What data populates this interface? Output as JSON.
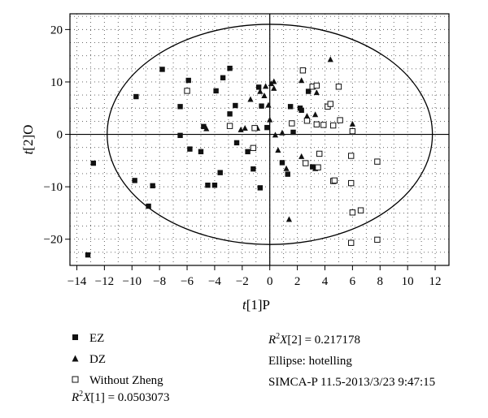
{
  "chart_data": {
    "type": "scatter",
    "xlabel": "t[1]P",
    "ylabel": "t[2]O",
    "xlim": [
      -14.5,
      13
    ],
    "ylim": [
      -25,
      23
    ],
    "xticks": [
      -14,
      -12,
      -10,
      -8,
      -6,
      -4,
      -2,
      0,
      2,
      4,
      6,
      8,
      10,
      12
    ],
    "yticks": [
      -20,
      -10,
      0,
      10,
      20
    ],
    "grid": "dotted",
    "ellipse": {
      "cx": 0,
      "cy": 0,
      "rx": 11.8,
      "ry": 21,
      "type": "hotelling"
    },
    "series": [
      {
        "name": "EZ",
        "marker": "filled-square",
        "points": [
          [
            -13.2,
            -23
          ],
          [
            -12.8,
            -5.5
          ],
          [
            -9.7,
            7.2
          ],
          [
            -9.8,
            -8.8
          ],
          [
            -8.8,
            -13.7
          ],
          [
            -8.5,
            -9.8
          ],
          [
            -7.8,
            12.4
          ],
          [
            -6.5,
            5.3
          ],
          [
            -6.5,
            -0.2
          ],
          [
            -5.9,
            10.3
          ],
          [
            -5.8,
            -2.8
          ],
          [
            -5.0,
            -3.3
          ],
          [
            -4.8,
            1.5
          ],
          [
            -4.5,
            -9.7
          ],
          [
            -4.0,
            -9.7
          ],
          [
            -3.9,
            8.3
          ],
          [
            -3.6,
            -7.3
          ],
          [
            -3.4,
            10.8
          ],
          [
            -2.9,
            12.6
          ],
          [
            -2.9,
            3.9
          ],
          [
            -2.5,
            5.5
          ],
          [
            -2.4,
            -1.6
          ],
          [
            -1.6,
            -3.3
          ],
          [
            -1.2,
            -6.6
          ],
          [
            -0.8,
            9.0
          ],
          [
            -0.7,
            -10.2
          ],
          [
            -0.6,
            5.4
          ],
          [
            -0.2,
            1.3
          ],
          [
            0.9,
            -5.4
          ],
          [
            1.3,
            -7.6
          ],
          [
            1.5,
            5.3
          ],
          [
            1.7,
            0.4
          ],
          [
            2.2,
            5.0
          ],
          [
            2.3,
            4.6
          ],
          [
            2.8,
            8.2
          ],
          [
            3.1,
            -6.2
          ]
        ]
      },
      {
        "name": "DZ",
        "marker": "filled-triangle",
        "points": [
          [
            -4.6,
            1.1
          ],
          [
            -2.1,
            0.9
          ],
          [
            -1.8,
            1.2
          ],
          [
            -1.4,
            6.7
          ],
          [
            -0.9,
            1.2
          ],
          [
            -0.7,
            8.2
          ],
          [
            -0.4,
            7.4
          ],
          [
            -0.1,
            5.6
          ],
          [
            -0.3,
            9.2
          ],
          [
            0.0,
            2.8
          ],
          [
            0.1,
            9.7
          ],
          [
            0.3,
            10.1
          ],
          [
            0.3,
            8.8
          ],
          [
            0.4,
            -0.1
          ],
          [
            0.6,
            -3.0
          ],
          [
            0.9,
            0.3
          ],
          [
            1.2,
            -6.5
          ],
          [
            1.4,
            -16.2
          ],
          [
            2.3,
            -4.2
          ],
          [
            2.3,
            10.3
          ],
          [
            2.7,
            3.5
          ],
          [
            3.3,
            3.8
          ],
          [
            3.4,
            8.0
          ],
          [
            3.3,
            -6.5
          ],
          [
            4.4,
            14.3
          ],
          [
            6.0,
            2.0
          ]
        ]
      },
      {
        "name": "Without Zheng",
        "marker": "open-square",
        "points": [
          [
            -6.0,
            8.3
          ],
          [
            -2.9,
            1.6
          ],
          [
            -1.1,
            1.2
          ],
          [
            -1.2,
            -2.6
          ],
          [
            1.6,
            2.1
          ],
          [
            2.4,
            12.2
          ],
          [
            2.6,
            -5.5
          ],
          [
            2.7,
            2.6
          ],
          [
            3.1,
            9.1
          ],
          [
            3.4,
            9.3
          ],
          [
            3.4,
            1.9
          ],
          [
            3.5,
            -6.3
          ],
          [
            3.6,
            -3.7
          ],
          [
            3.9,
            1.8
          ],
          [
            4.2,
            5.3
          ],
          [
            4.4,
            5.8
          ],
          [
            4.6,
            1.7
          ],
          [
            4.6,
            -8.9
          ],
          [
            4.7,
            -8.8
          ],
          [
            5.0,
            9.1
          ],
          [
            5.1,
            2.7
          ],
          [
            5.9,
            -4.1
          ],
          [
            5.9,
            -9.3
          ],
          [
            5.9,
            -20.7
          ],
          [
            6.0,
            0.6
          ],
          [
            6.0,
            -14.9
          ],
          [
            6.6,
            -14.5
          ],
          [
            7.8,
            -5.2
          ],
          [
            7.8,
            -20.1
          ]
        ]
      }
    ]
  },
  "legend": [
    {
      "label": "EZ",
      "marker": "filled-square"
    },
    {
      "label": "DZ",
      "marker": "filled-triangle"
    },
    {
      "label": "Without Zheng",
      "marker": "open-square"
    }
  ],
  "stats": {
    "r2x1": "= 0.0503073",
    "r2x2": "= 0.217178",
    "ellipse": "Ellipse: hotelling",
    "software": "SIMCA-P 11.5-2013/3/23 9:47:15"
  }
}
